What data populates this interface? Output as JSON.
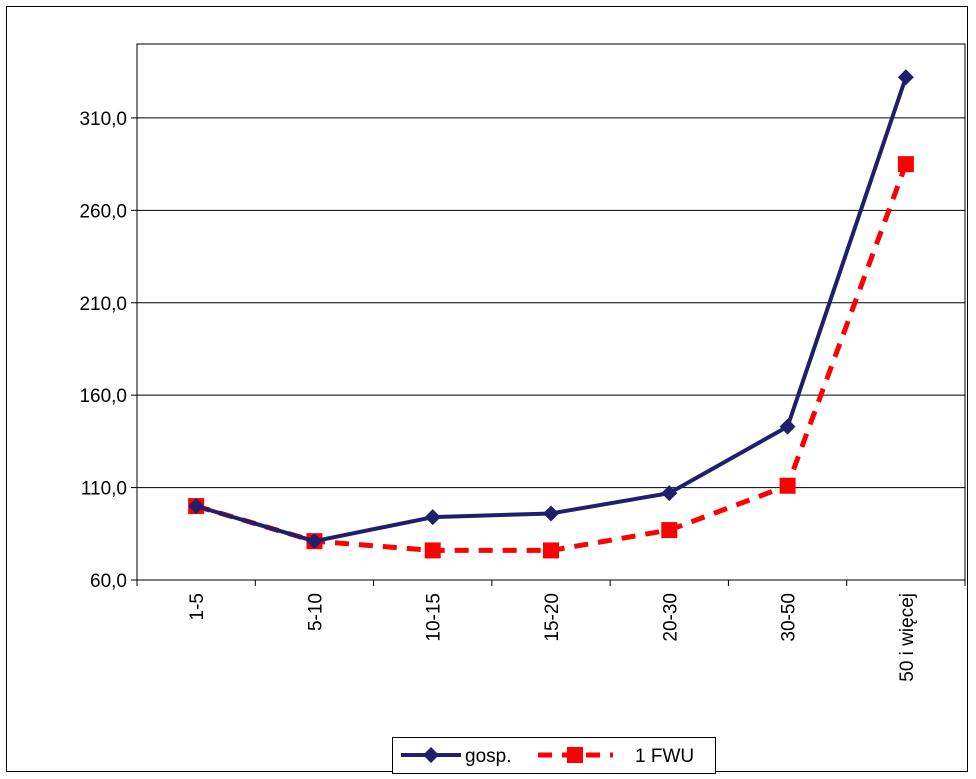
{
  "chart_data": {
    "type": "line",
    "categories": [
      "1-5",
      "5-10",
      "10-15",
      "15-20",
      "20-30",
      "30-50",
      "50 i więcej"
    ],
    "series": [
      {
        "name": "gosp.",
        "values": [
          100.0,
          81.0,
          94.0,
          96.0,
          107.0,
          143.0,
          332.0
        ],
        "color": "#1f1f6b",
        "style": "solid",
        "marker": "diamond"
      },
      {
        "name": "1 FWU",
        "values": [
          100.0,
          81.0,
          76.0,
          76.0,
          87.0,
          111.0,
          285.0
        ],
        "color": "#ff0000",
        "style": "dashed",
        "marker": "square"
      }
    ],
    "yticks": [
      "60,0",
      "110,0",
      "160,0",
      "210,0",
      "260,0",
      "310,0"
    ],
    "ytick_values": [
      60,
      110,
      160,
      210,
      260,
      310
    ],
    "ylim": [
      60,
      350
    ],
    "grid": true,
    "legend_position": "bottom"
  }
}
